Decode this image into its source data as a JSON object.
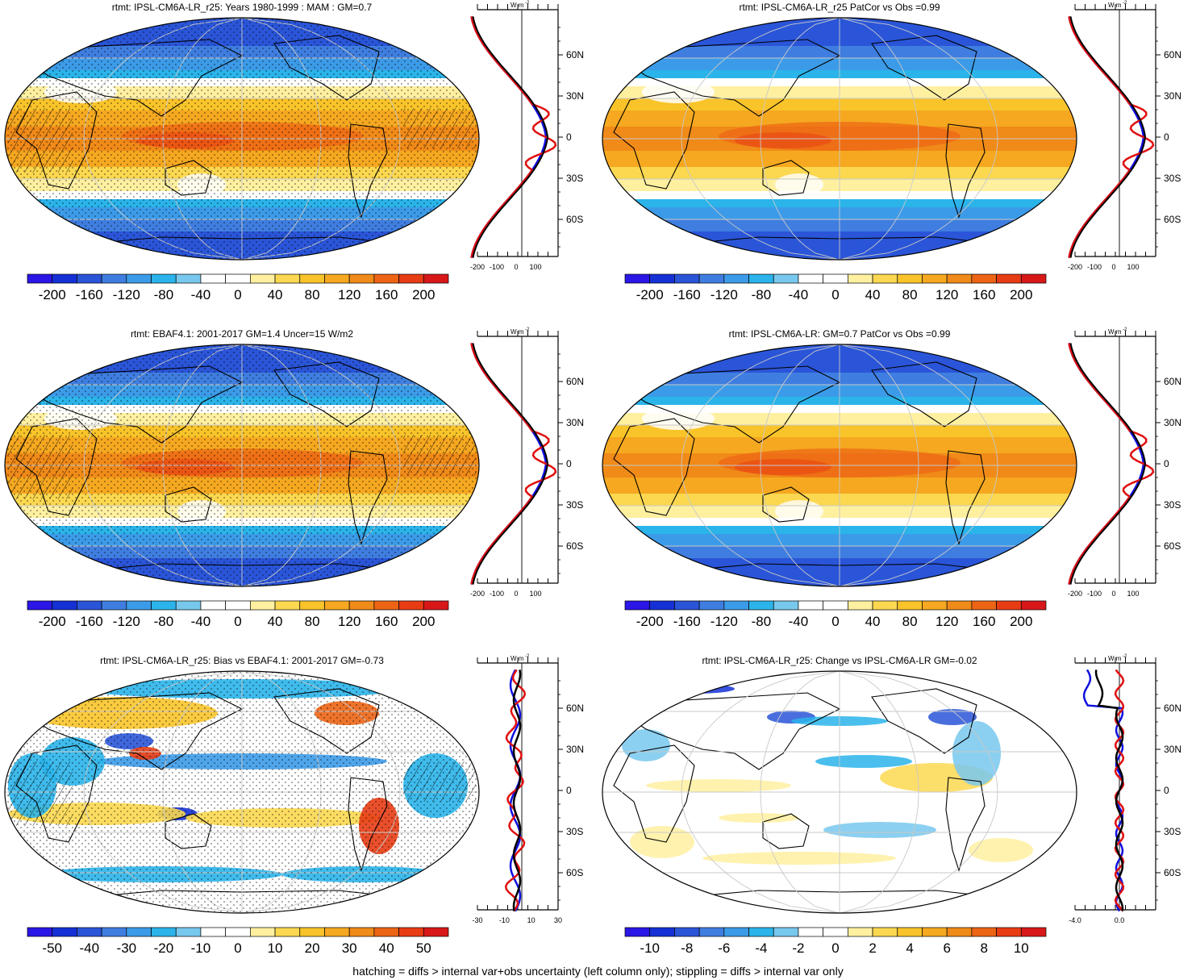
{
  "panels": [
    {
      "title": "rtmt: IPSL-CM6A-LR_r25: Years 1980-1999 : MAM : GM=0.7",
      "kind": "mean",
      "hatch": true,
      "stipple": true,
      "colorbar": {
        "labels": [
          "-200",
          "-160",
          "-120",
          "-80",
          "-40",
          "0",
          "40",
          "80",
          "120",
          "160",
          "200"
        ]
      },
      "profile": {
        "units": "W m",
        "units_exp": "-2",
        "lat_labels": [
          "60N",
          "30N",
          "0",
          "30S",
          "60S"
        ],
        "x_labels": [
          "-200",
          "-100",
          "0",
          "100"
        ]
      }
    },
    {
      "title": "rtmt: IPSL-CM6A-LR_r25 PatCor vs Obs =0.99",
      "kind": "mean",
      "hatch": false,
      "stipple": false,
      "colorbar": {
        "labels": [
          "-200",
          "-160",
          "-120",
          "-80",
          "-40",
          "0",
          "40",
          "80",
          "120",
          "160",
          "200"
        ]
      },
      "profile": {
        "units": "W m",
        "units_exp": "-2",
        "lat_labels": [
          "60N",
          "30N",
          "0",
          "30S",
          "60S"
        ],
        "x_labels": [
          "-200",
          "-100",
          "0",
          "100"
        ]
      }
    },
    {
      "title": "rtmt: EBAF4.1: 2001-2017 GM=1.4 Uncer=15 W/m2",
      "kind": "mean",
      "hatch": true,
      "stipple": true,
      "colorbar": {
        "labels": [
          "-200",
          "-160",
          "-120",
          "-80",
          "-40",
          "0",
          "40",
          "80",
          "120",
          "160",
          "200"
        ]
      },
      "profile": {
        "units": "W m",
        "units_exp": "-2",
        "lat_labels": [
          "60N",
          "30N",
          "0",
          "30S",
          "60S"
        ],
        "x_labels": [
          "-200",
          "-100",
          "0",
          "100"
        ]
      }
    },
    {
      "title": "rtmt: IPSL-CM6A-LR: GM=0.7 PatCor vs Obs =0.99",
      "kind": "mean",
      "hatch": false,
      "stipple": false,
      "colorbar": {
        "labels": [
          "-200",
          "-160",
          "-120",
          "-80",
          "-40",
          "0",
          "40",
          "80",
          "120",
          "160",
          "200"
        ]
      },
      "profile": {
        "units": "W m",
        "units_exp": "-2",
        "lat_labels": [
          "60N",
          "30N",
          "0",
          "30S",
          "60S"
        ],
        "x_labels": [
          "-200",
          "-100",
          "0",
          "100"
        ]
      }
    },
    {
      "title": "rtmt: IPSL-CM6A-LR_r25: Bias vs EBAF4.1: 2001-2017 GM=-0.73",
      "kind": "bias",
      "hatch": true,
      "stipple": true,
      "colorbar": {
        "labels": [
          "-50",
          "-40",
          "-30",
          "-20",
          "-10",
          "0",
          "10",
          "20",
          "30",
          "40",
          "50"
        ]
      },
      "profile": {
        "units": "W m",
        "units_exp": "-2",
        "lat_labels": [
          "60N",
          "30N",
          "0",
          "30S",
          "60S"
        ],
        "x_labels": [
          "-30",
          "-10",
          "10",
          "30"
        ]
      }
    },
    {
      "title": "rtmt: IPSL-CM6A-LR_r25: Change vs IPSL-CM6A-LR GM=-0.02",
      "kind": "change",
      "hatch": false,
      "stipple": false,
      "colorbar": {
        "labels": [
          "-10",
          "-8",
          "-6",
          "-4",
          "-2",
          "0",
          "2",
          "4",
          "6",
          "8",
          "10"
        ]
      },
      "profile": {
        "units": "W m",
        "units_exp": "-2",
        "lat_labels": [
          "60N",
          "30N",
          "0",
          "30S",
          "60S"
        ],
        "x_labels": [
          "-4.0",
          "0.0"
        ]
      }
    }
  ],
  "footer": "hatching = diffs > internal var+obs uncertainty (left column only); stippling = diffs > internal var only",
  "colors": {
    "palette": [
      "#2a17e6",
      "#1531d6",
      "#2a55d8",
      "#3f7ee0",
      "#3c9be8",
      "#2ab4ea",
      "#78c8ee",
      "#ffffff",
      "#ffffff",
      "#fff0a0",
      "#fbd850",
      "#f9c42a",
      "#f5a820",
      "#f08a18",
      "#ec6414",
      "#e83c14",
      "#d81818"
    ],
    "land_outline": "#000000",
    "grid": "#c8c8c8",
    "profile_red": "#e01010",
    "profile_blue": "#1010e0",
    "profile_black": "#000000"
  }
}
